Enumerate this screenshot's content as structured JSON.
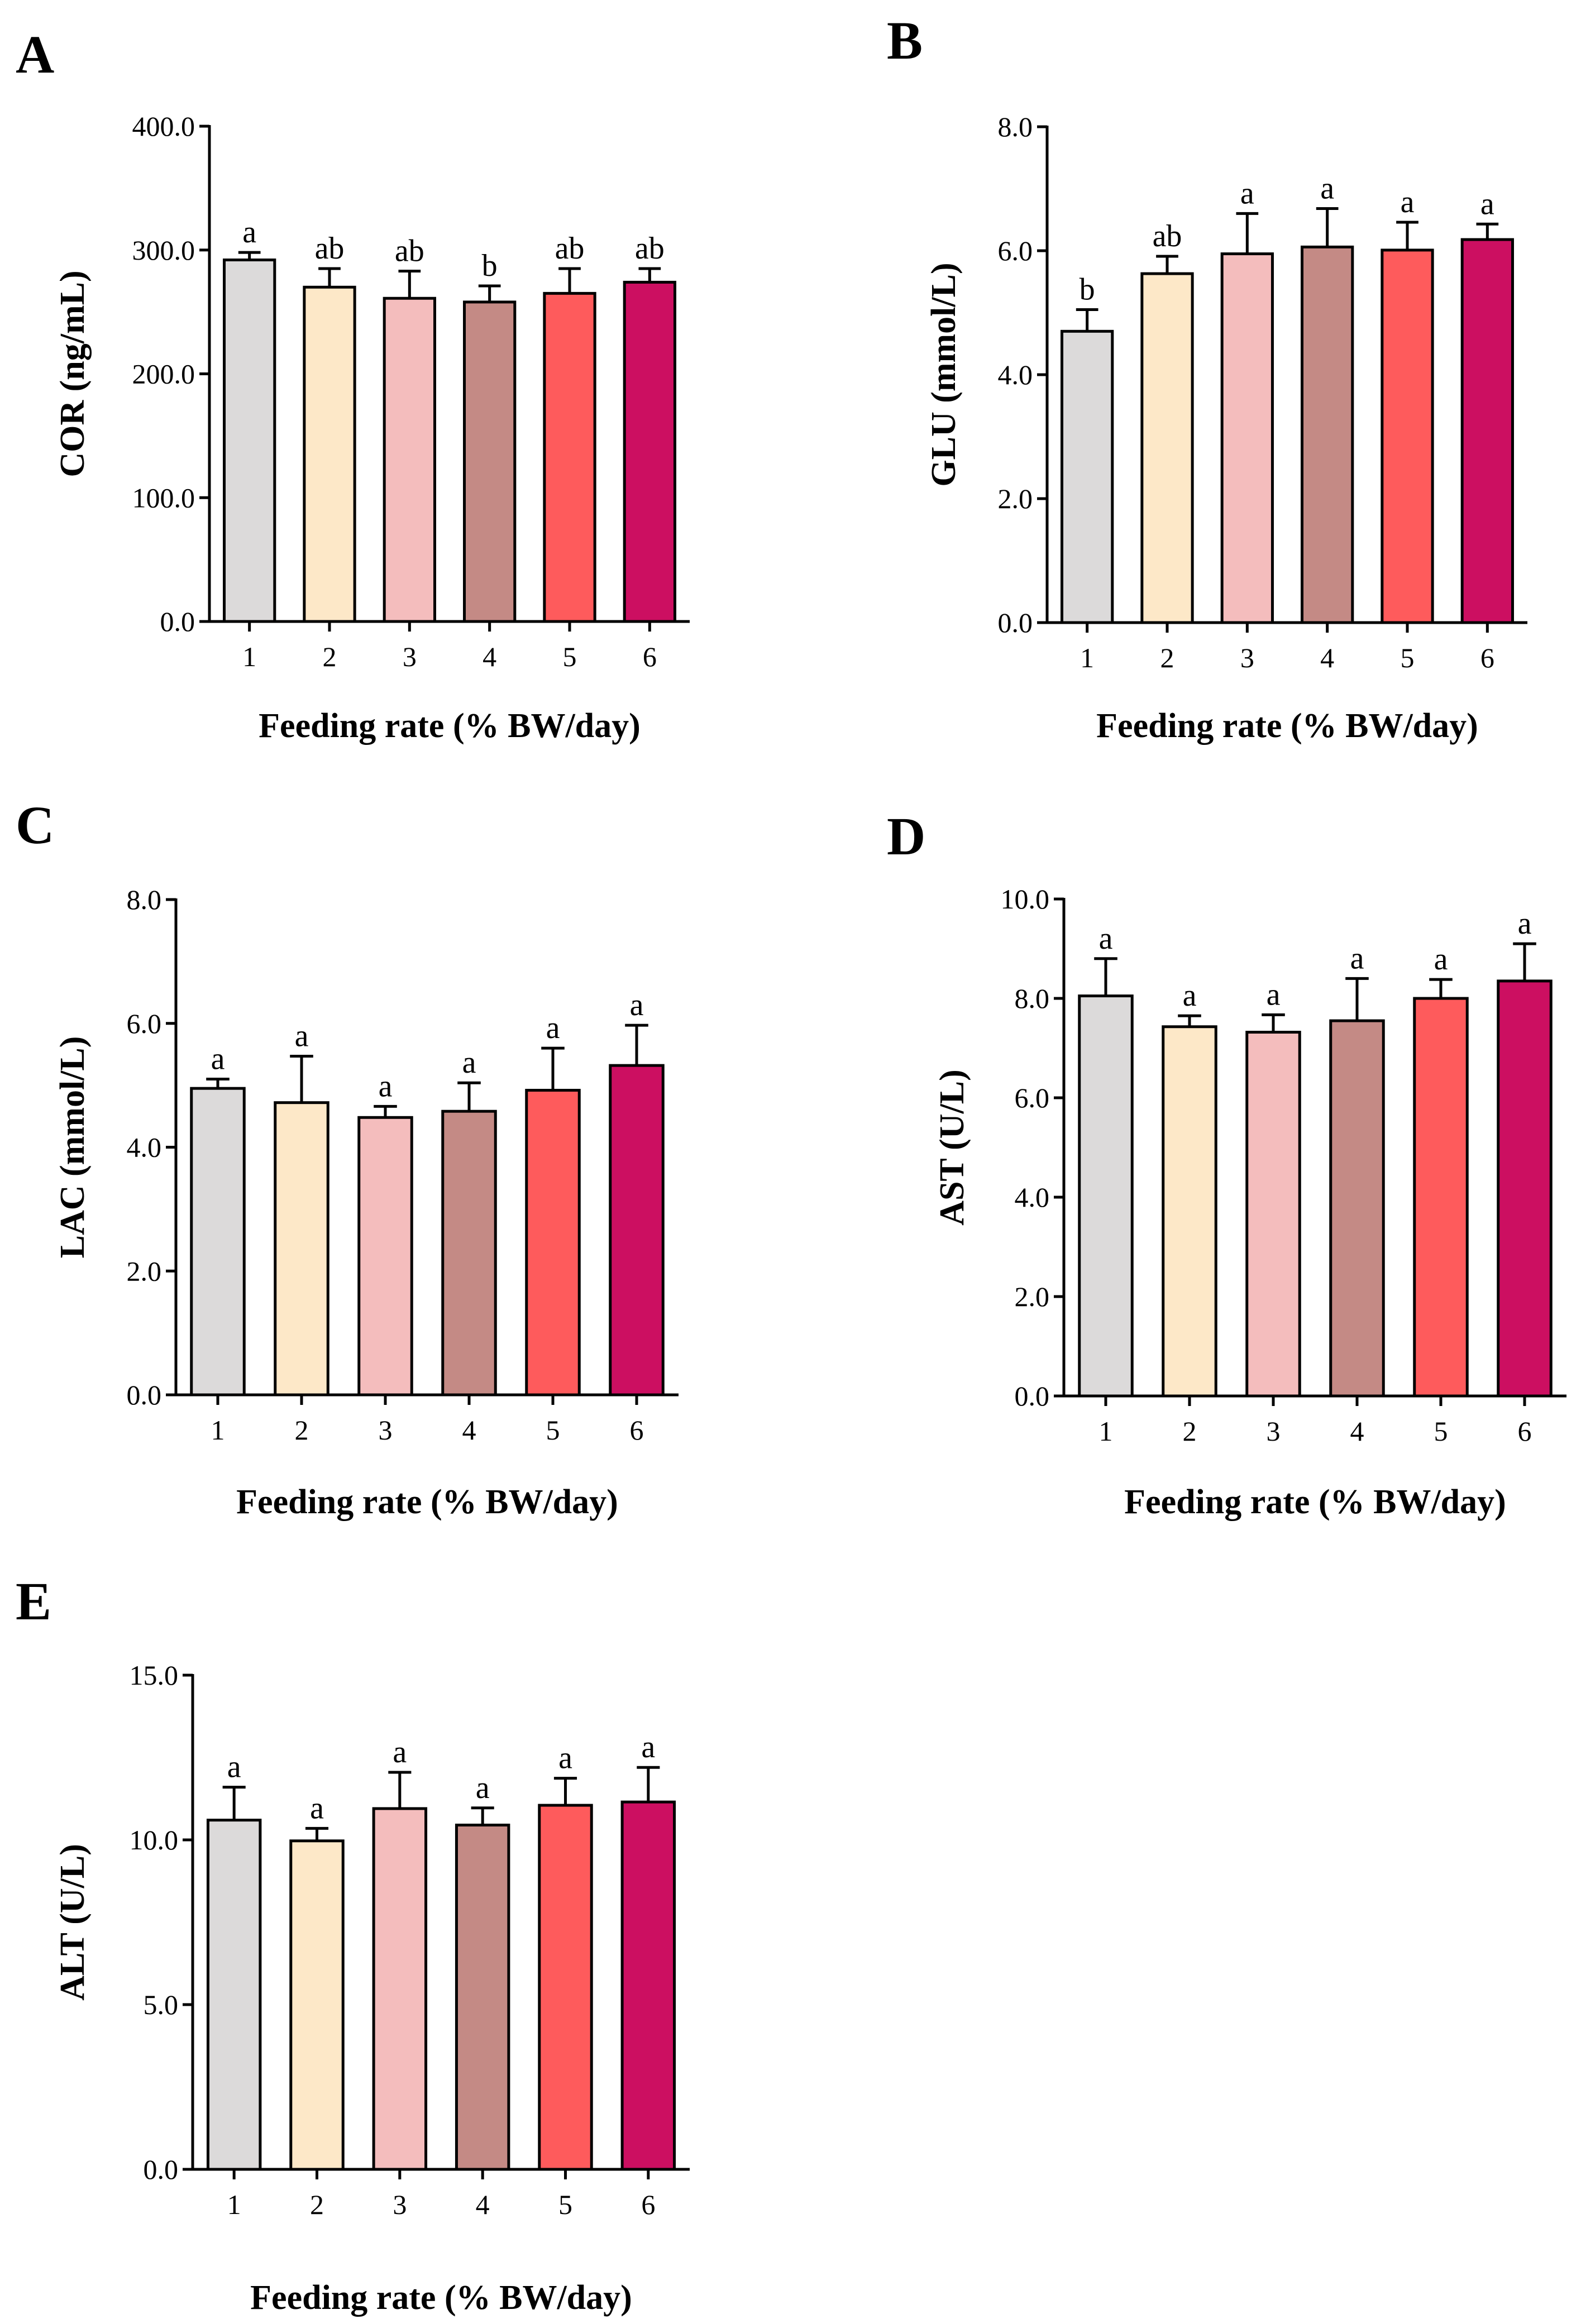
{
  "colors": [
    "#DCDADA",
    "#FDE8C8",
    "#F4BDBD",
    "#C48A85",
    "#FE5B5C",
    "#CC0F61"
  ],
  "chart_data": [
    {
      "panel": "A",
      "type": "bar",
      "categories": [
        "1",
        "2",
        "3",
        "4",
        "5",
        "6"
      ],
      "values": [
        292,
        270,
        261,
        258,
        265,
        274
      ],
      "errors": [
        6,
        15,
        22,
        13,
        20,
        11
      ],
      "significance": [
        "a",
        "ab",
        "ab",
        "b",
        "ab",
        "ab"
      ],
      "xlabel": "Feeding rate (% BW/day)",
      "ylabel": "COR (ng/mL)",
      "ylim": [
        0,
        400
      ],
      "yticks": [
        0,
        100,
        200,
        300,
        400
      ],
      "ytick_labels": [
        "0.0",
        "100.0",
        "200.0",
        "300.0",
        "400.0"
      ]
    },
    {
      "panel": "B",
      "type": "bar",
      "categories": [
        "1",
        "2",
        "3",
        "4",
        "5",
        "6"
      ],
      "values": [
        4.7,
        5.63,
        5.95,
        6.06,
        6.01,
        6.18
      ],
      "errors": [
        0.35,
        0.28,
        0.65,
        0.62,
        0.45,
        0.25
      ],
      "significance": [
        "b",
        "ab",
        "a",
        "a",
        "a",
        "a"
      ],
      "xlabel": "Feeding rate (% BW/day)",
      "ylabel": "GLU (mmol/L)",
      "ylim": [
        0,
        8
      ],
      "yticks": [
        0,
        2,
        4,
        6,
        8
      ],
      "ytick_labels": [
        "0.0",
        "2.0",
        "4.0",
        "6.0",
        "8.0"
      ]
    },
    {
      "panel": "C",
      "type": "bar",
      "categories": [
        "1",
        "2",
        "3",
        "4",
        "5",
        "6"
      ],
      "values": [
        4.95,
        4.72,
        4.48,
        4.58,
        4.92,
        5.32
      ],
      "errors": [
        0.15,
        0.75,
        0.18,
        0.46,
        0.68,
        0.65
      ],
      "significance": [
        "a",
        "a",
        "a",
        "a",
        "a",
        "a"
      ],
      "xlabel": "Feeding rate (% BW/day)",
      "ylabel": "LAC (mmol/L)",
      "ylim": [
        0,
        8
      ],
      "yticks": [
        0,
        2,
        4,
        6,
        8
      ],
      "ytick_labels": [
        "0.0",
        "2.0",
        "4.0",
        "6.0",
        "8.0"
      ]
    },
    {
      "panel": "D",
      "type": "bar",
      "categories": [
        "1",
        "2",
        "3",
        "4",
        "5",
        "6"
      ],
      "values": [
        8.05,
        7.43,
        7.32,
        7.55,
        8.0,
        8.35
      ],
      "errors": [
        0.75,
        0.22,
        0.35,
        0.85,
        0.38,
        0.75
      ],
      "significance": [
        "a",
        "a",
        "a",
        "a",
        "a",
        "a"
      ],
      "xlabel": "Feeding rate (% BW/day)",
      "ylabel": "AST (U/L)",
      "ylim": [
        0,
        10
      ],
      "yticks": [
        0,
        2,
        4,
        6,
        8,
        10
      ],
      "ytick_labels": [
        "0.0",
        "2.0",
        "4.0",
        "6.0",
        "8.0",
        "10.0"
      ]
    },
    {
      "panel": "E",
      "type": "bar",
      "categories": [
        "1",
        "2",
        "3",
        "4",
        "5",
        "6"
      ],
      "values": [
        10.6,
        9.97,
        10.95,
        10.45,
        11.05,
        11.15
      ],
      "errors": [
        1.0,
        0.38,
        1.1,
        0.52,
        0.82,
        1.05
      ],
      "significance": [
        "a",
        "a",
        "a",
        "a",
        "a",
        "a"
      ],
      "xlabel": "Feeding rate (% BW/day)",
      "ylabel": "ALT (U/L)",
      "ylim": [
        0,
        15
      ],
      "yticks": [
        0,
        5,
        10,
        15
      ],
      "ytick_labels": [
        "0.0",
        "5.0",
        "10.0",
        "15.0"
      ]
    }
  ]
}
